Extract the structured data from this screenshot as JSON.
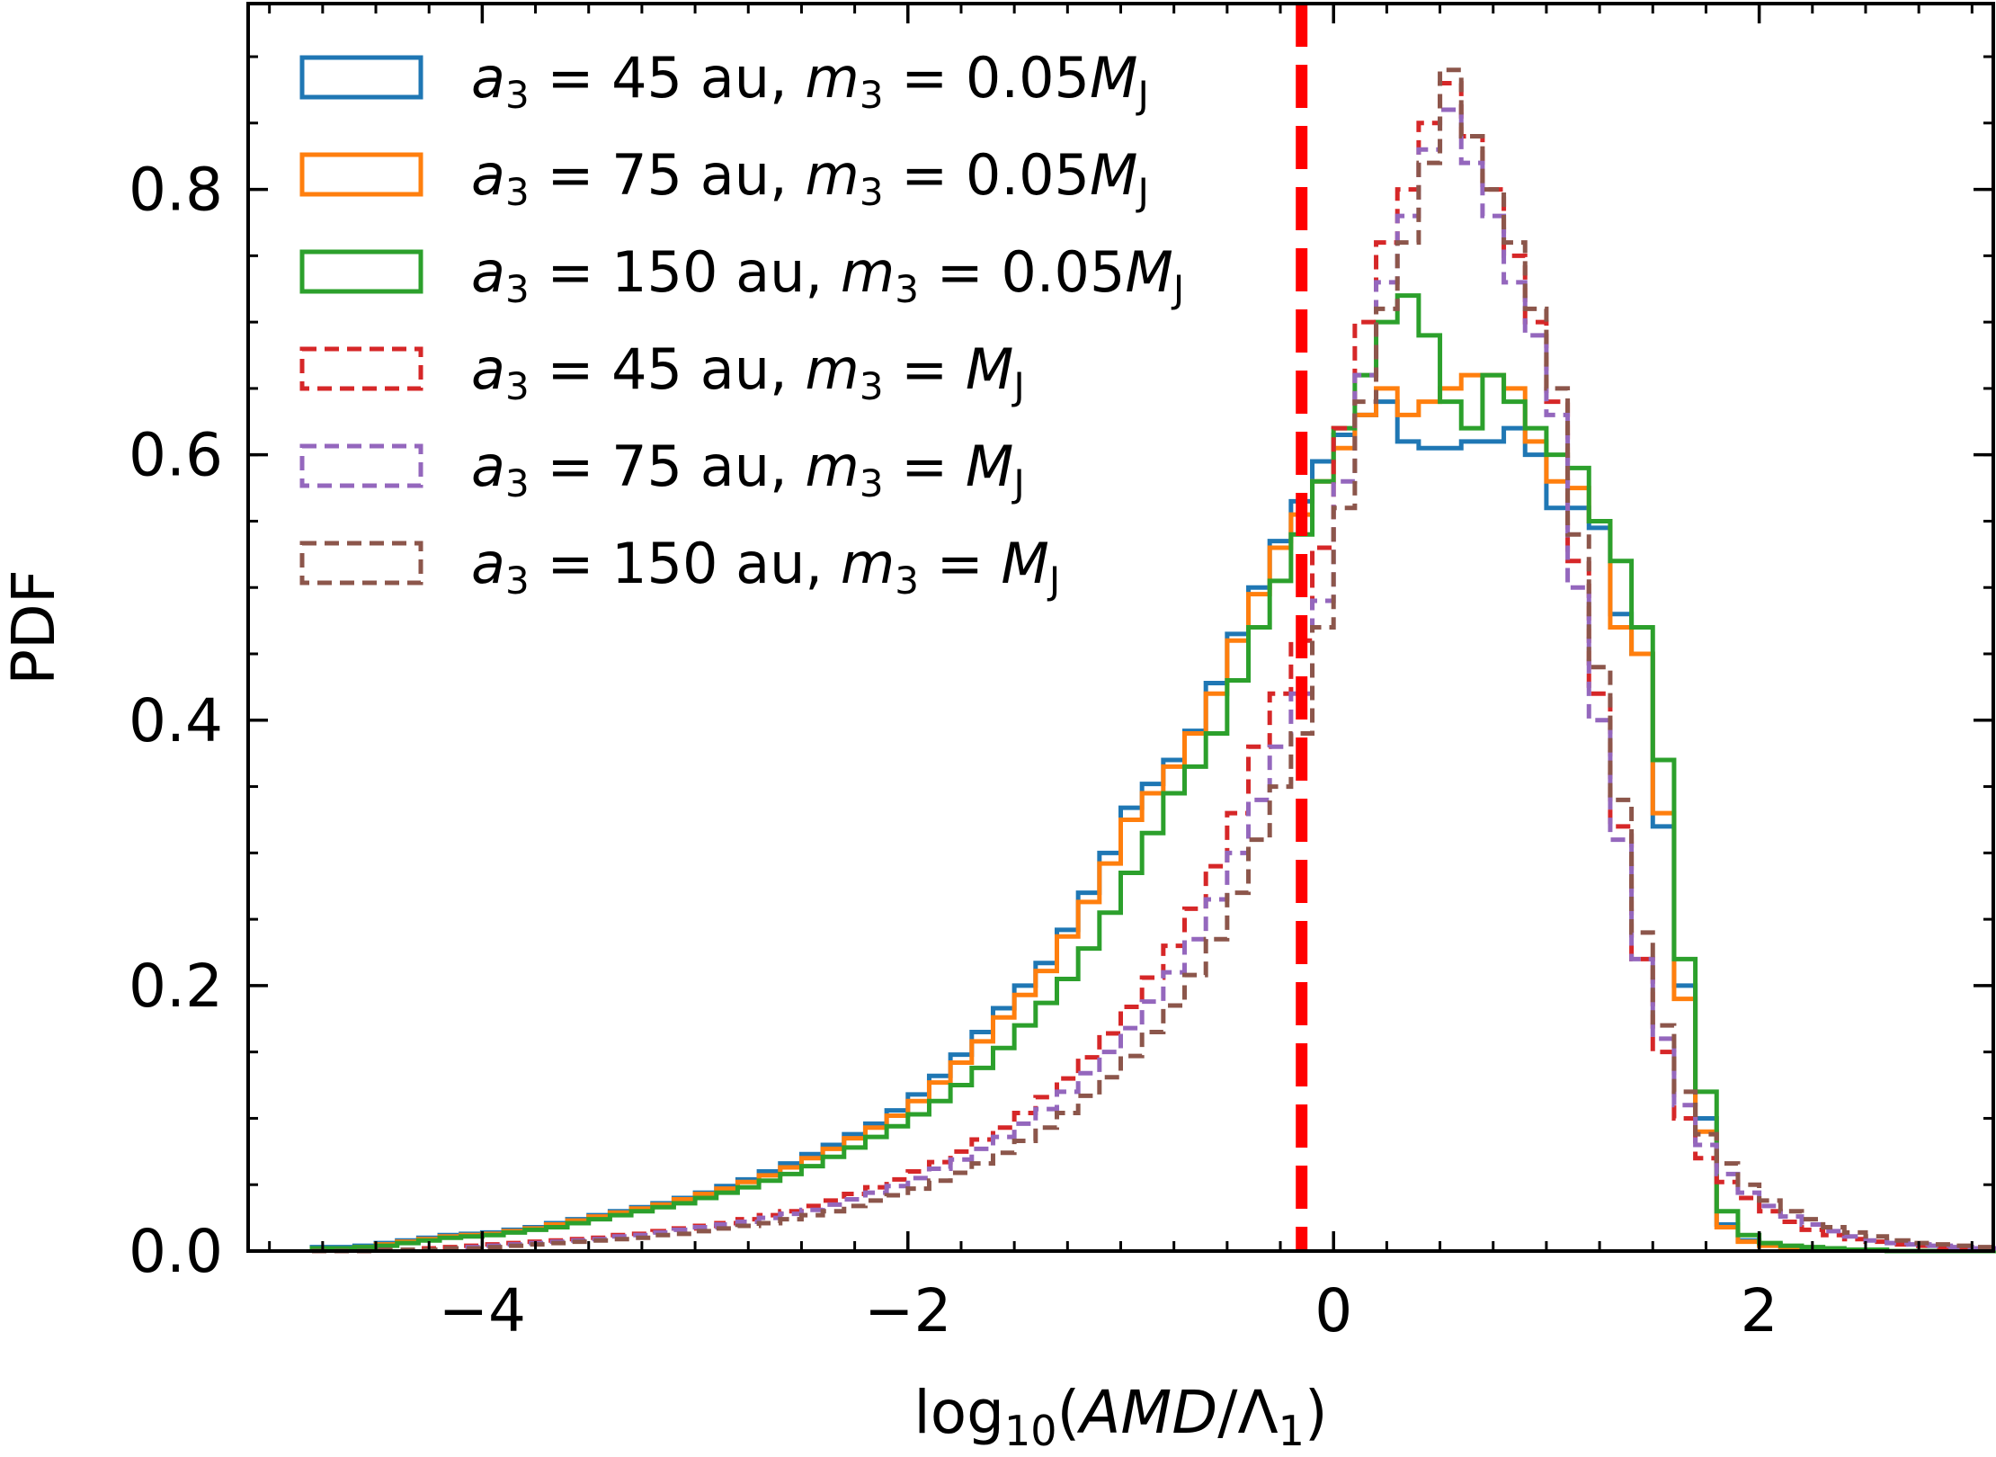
{
  "chart_data": {
    "type": "histogram",
    "xlabel": "log10(AMD/Λ1)",
    "ylabel": "PDF",
    "xlim": [
      -5.1,
      3.1
    ],
    "ylim": [
      0.0,
      0.94
    ],
    "xticks": [
      -4,
      -2,
      0,
      2
    ],
    "xtick_labels": [
      "−4",
      "−2",
      "0",
      "2"
    ],
    "yticks": [
      0.0,
      0.2,
      0.4,
      0.6,
      0.8
    ],
    "ytick_labels": [
      "0.0",
      "0.2",
      "0.4",
      "0.6",
      "0.8"
    ],
    "grid": false,
    "legend_position": "upper-left",
    "reference_line": {
      "x": -0.15,
      "color": "#ff0000",
      "style": "dashed"
    },
    "bin_width": 0.1,
    "x_start": -4.8,
    "series": [
      {
        "name": "a3 = 45 au, m3 = 0.05MJ",
        "name_parts": [
          "a",
          "3",
          " = 45 au, ",
          "m",
          "3",
          " = 0.05",
          "M",
          "J"
        ],
        "color": "#1f77b4",
        "style": "solid",
        "values": [
          0.003,
          0.003,
          0.004,
          0.006,
          0.008,
          0.01,
          0.012,
          0.013,
          0.014,
          0.016,
          0.018,
          0.021,
          0.024,
          0.027,
          0.03,
          0.033,
          0.036,
          0.04,
          0.044,
          0.049,
          0.054,
          0.06,
          0.066,
          0.073,
          0.08,
          0.088,
          0.096,
          0.106,
          0.118,
          0.132,
          0.148,
          0.165,
          0.183,
          0.2,
          0.217,
          0.242,
          0.27,
          0.3,
          0.334,
          0.352,
          0.37,
          0.392,
          0.428,
          0.465,
          0.5,
          0.535,
          0.565,
          0.595,
          0.615,
          0.63,
          0.64,
          0.61,
          0.605,
          0.605,
          0.61,
          0.61,
          0.62,
          0.6,
          0.56,
          0.56,
          0.545,
          0.48,
          0.45,
          0.32,
          0.2,
          0.1,
          0.02,
          0.008,
          0.005,
          0.003,
          0.002,
          0.001,
          0.001,
          0.001,
          0.0,
          0.0,
          0.0,
          0.0,
          0.0,
          0.0,
          0.0,
          0.0,
          0.0,
          0.0,
          0.0,
          0.0
        ]
      },
      {
        "name": "a3 = 75 au, m3 = 0.05MJ",
        "name_parts": [
          "a",
          "3",
          " = 75 au, ",
          "m",
          "3",
          " = 0.05",
          "M",
          "J"
        ],
        "color": "#ff7f0e",
        "style": "solid",
        "values": [
          0.002,
          0.002,
          0.003,
          0.005,
          0.007,
          0.009,
          0.011,
          0.012,
          0.013,
          0.015,
          0.017,
          0.02,
          0.023,
          0.026,
          0.029,
          0.032,
          0.035,
          0.039,
          0.043,
          0.047,
          0.052,
          0.057,
          0.063,
          0.07,
          0.077,
          0.085,
          0.093,
          0.102,
          0.113,
          0.127,
          0.142,
          0.158,
          0.176,
          0.193,
          0.211,
          0.237,
          0.263,
          0.292,
          0.325,
          0.345,
          0.365,
          0.39,
          0.42,
          0.46,
          0.495,
          0.53,
          0.555,
          0.58,
          0.605,
          0.63,
          0.65,
          0.63,
          0.64,
          0.65,
          0.66,
          0.66,
          0.65,
          0.61,
          0.58,
          0.575,
          0.55,
          0.47,
          0.45,
          0.33,
          0.19,
          0.09,
          0.018,
          0.007,
          0.004,
          0.003,
          0.002,
          0.001,
          0.001,
          0.001,
          0.0,
          0.0,
          0.0,
          0.0,
          0.0,
          0.0,
          0.0,
          0.0,
          0.0,
          0.0,
          0.0,
          0.0
        ]
      },
      {
        "name": "a3 = 150 au, m3 = 0.05MJ",
        "name_parts": [
          "a",
          "3",
          " = 150 au, ",
          "m",
          "3",
          " = 0.05",
          "M",
          "J"
        ],
        "color": "#2ca02c",
        "style": "solid",
        "values": [
          0.002,
          0.002,
          0.003,
          0.004,
          0.006,
          0.008,
          0.01,
          0.011,
          0.012,
          0.014,
          0.016,
          0.018,
          0.021,
          0.024,
          0.027,
          0.03,
          0.033,
          0.036,
          0.04,
          0.044,
          0.048,
          0.053,
          0.058,
          0.064,
          0.071,
          0.078,
          0.086,
          0.094,
          0.103,
          0.113,
          0.125,
          0.138,
          0.153,
          0.17,
          0.187,
          0.205,
          0.228,
          0.255,
          0.285,
          0.315,
          0.345,
          0.365,
          0.39,
          0.43,
          0.47,
          0.505,
          0.54,
          0.58,
          0.62,
          0.66,
          0.7,
          0.72,
          0.69,
          0.64,
          0.62,
          0.66,
          0.64,
          0.62,
          0.6,
          0.59,
          0.55,
          0.52,
          0.47,
          0.37,
          0.22,
          0.12,
          0.03,
          0.012,
          0.006,
          0.004,
          0.003,
          0.002,
          0.001,
          0.001,
          0.0,
          0.0,
          0.0,
          0.0,
          0.0,
          0.0,
          0.0,
          0.0,
          0.0,
          0.0,
          0.0,
          0.0
        ]
      },
      {
        "name": "a3 = 45 au, m3 = MJ",
        "name_parts": [
          "a",
          "3",
          " = 45 au, ",
          "m",
          "3",
          " = ",
          "M",
          "J"
        ],
        "color": "#d62728",
        "style": "dashed",
        "values": [
          0.0,
          0.0,
          0.0,
          0.001,
          0.001,
          0.002,
          0.003,
          0.004,
          0.005,
          0.006,
          0.007,
          0.008,
          0.009,
          0.01,
          0.012,
          0.013,
          0.015,
          0.017,
          0.019,
          0.021,
          0.024,
          0.027,
          0.03,
          0.034,
          0.038,
          0.043,
          0.048,
          0.054,
          0.06,
          0.067,
          0.075,
          0.084,
          0.093,
          0.104,
          0.116,
          0.13,
          0.146,
          0.164,
          0.184,
          0.206,
          0.23,
          0.258,
          0.29,
          0.33,
          0.38,
          0.42,
          0.46,
          0.53,
          0.62,
          0.7,
          0.76,
          0.8,
          0.85,
          0.88,
          0.84,
          0.8,
          0.75,
          0.7,
          0.64,
          0.52,
          0.42,
          0.32,
          0.22,
          0.15,
          0.1,
          0.07,
          0.052,
          0.04,
          0.03,
          0.022,
          0.016,
          0.012,
          0.009,
          0.007,
          0.005,
          0.004,
          0.003,
          0.002,
          0.002,
          0.001,
          0.001,
          0.001,
          0.001,
          0.001,
          0.0,
          0.0
        ]
      },
      {
        "name": "a3 = 75 au, m3 = MJ",
        "name_parts": [
          "a",
          "3",
          " = 75 au, ",
          "m",
          "3",
          " = ",
          "M",
          "J"
        ],
        "color": "#9467bd",
        "style": "dashed",
        "values": [
          0.0,
          0.0,
          0.0,
          0.001,
          0.001,
          0.001,
          0.002,
          0.003,
          0.004,
          0.005,
          0.006,
          0.007,
          0.008,
          0.009,
          0.011,
          0.012,
          0.014,
          0.016,
          0.018,
          0.02,
          0.022,
          0.025,
          0.028,
          0.031,
          0.035,
          0.039,
          0.044,
          0.049,
          0.055,
          0.062,
          0.069,
          0.077,
          0.086,
          0.096,
          0.107,
          0.12,
          0.134,
          0.15,
          0.168,
          0.188,
          0.21,
          0.235,
          0.265,
          0.3,
          0.34,
          0.38,
          0.42,
          0.49,
          0.58,
          0.66,
          0.73,
          0.78,
          0.83,
          0.86,
          0.82,
          0.78,
          0.73,
          0.69,
          0.63,
          0.5,
          0.4,
          0.31,
          0.22,
          0.16,
          0.11,
          0.08,
          0.058,
          0.044,
          0.034,
          0.026,
          0.02,
          0.015,
          0.011,
          0.008,
          0.006,
          0.005,
          0.004,
          0.003,
          0.002,
          0.002,
          0.001,
          0.001,
          0.001,
          0.001,
          0.0,
          0.0
        ]
      },
      {
        "name": "a3 = 150 au, m3 = MJ",
        "name_parts": [
          "a",
          "3",
          " = 150 au, ",
          "m",
          "3",
          " = ",
          "M",
          "J"
        ],
        "color": "#8c564b",
        "style": "dashed",
        "values": [
          0.0,
          0.0,
          0.0,
          0.001,
          0.001,
          0.001,
          0.002,
          0.002,
          0.003,
          0.004,
          0.005,
          0.006,
          0.007,
          0.008,
          0.009,
          0.01,
          0.012,
          0.013,
          0.015,
          0.017,
          0.019,
          0.021,
          0.024,
          0.027,
          0.03,
          0.034,
          0.038,
          0.042,
          0.047,
          0.053,
          0.059,
          0.066,
          0.074,
          0.083,
          0.093,
          0.104,
          0.117,
          0.131,
          0.147,
          0.165,
          0.185,
          0.208,
          0.235,
          0.27,
          0.31,
          0.35,
          0.39,
          0.47,
          0.56,
          0.64,
          0.71,
          0.76,
          0.82,
          0.89,
          0.84,
          0.8,
          0.76,
          0.71,
          0.65,
          0.54,
          0.44,
          0.34,
          0.24,
          0.17,
          0.12,
          0.088,
          0.066,
          0.05,
          0.038,
          0.03,
          0.024,
          0.018,
          0.014,
          0.011,
          0.008,
          0.006,
          0.005,
          0.004,
          0.003,
          0.002,
          0.002,
          0.001,
          0.001,
          0.001,
          0.0,
          0.0
        ]
      }
    ]
  }
}
